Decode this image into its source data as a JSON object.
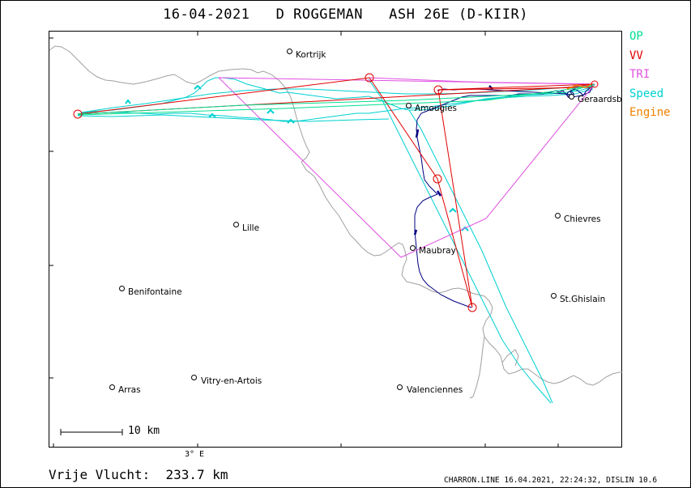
{
  "title": "16-04-2021   D ROGGEMAN   ASH 26E (D-KIIR)",
  "legend": [
    {
      "label": "OP",
      "color": "#00e090"
    },
    {
      "label": "VV",
      "color": "#e00000"
    },
    {
      "label": "TRI",
      "color": "#e050e0"
    },
    {
      "label": "Speed",
      "color": "#00d0d0"
    },
    {
      "label": "Engine",
      "color": "#f08000"
    }
  ],
  "scale_label": "10 km",
  "axis_tick_label": "3° E",
  "distance_text": "Vrije Vlucht:  233.7 km",
  "footer_info": "CHARRON.LINE 16.04.2021, 22:24:32, DISLIN 10.6",
  "cities": [
    {
      "name": "Kortrijk"
    },
    {
      "name": "Amougies"
    },
    {
      "name": "Geraardsbergen"
    },
    {
      "name": "Chievres"
    },
    {
      "name": "Lille"
    },
    {
      "name": "Maubray"
    },
    {
      "name": "Benifontaine"
    },
    {
      "name": "St.Ghislain"
    },
    {
      "name": "Arras"
    },
    {
      "name": "Vitry-en-Artois"
    },
    {
      "name": "Valenciennes"
    }
  ],
  "colors": {
    "border": "#a0a0a0",
    "track": "#000080",
    "speed": "#00d0d0",
    "op": "#00e090",
    "vv": "#e00000",
    "tri": "#e050e0"
  }
}
